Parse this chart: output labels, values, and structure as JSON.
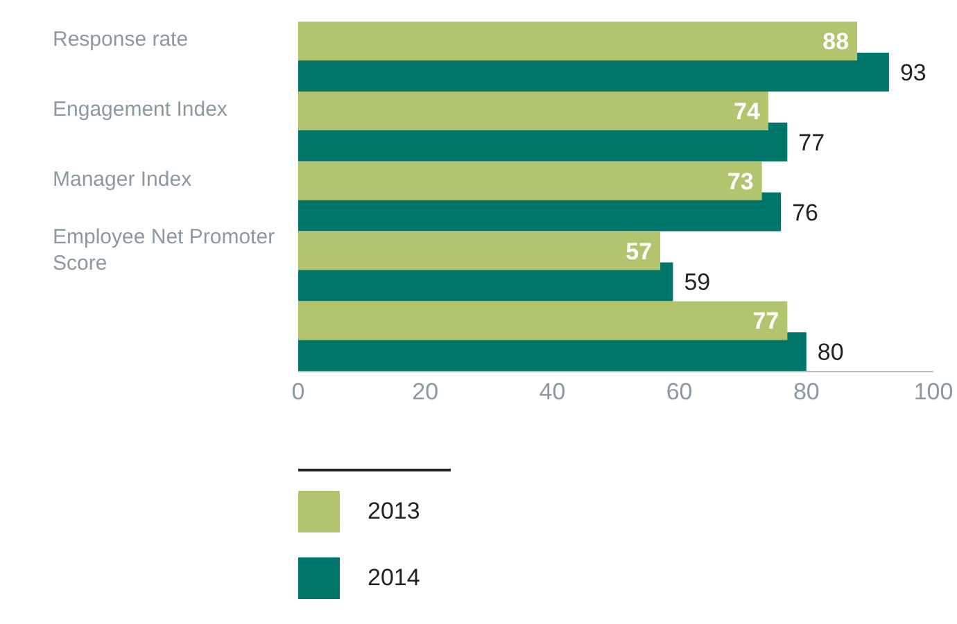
{
  "chart_data": {
    "type": "bar",
    "orientation": "horizontal",
    "categories": [
      "Response rate",
      "Engagement Index",
      "Manager Index",
      "Employee Net Promoter Score",
      null
    ],
    "series": [
      {
        "name": "2013",
        "color": "#b3c46f",
        "values": [
          88,
          74,
          73,
          57,
          77
        ]
      },
      {
        "name": "2014",
        "color": "#00766a",
        "values": [
          93,
          77,
          76,
          59,
          80
        ]
      }
    ],
    "xlim": [
      0,
      100
    ],
    "xticks": [
      0,
      20,
      40,
      60,
      80,
      100
    ],
    "data_labels": true,
    "legend": "bottom left"
  }
}
